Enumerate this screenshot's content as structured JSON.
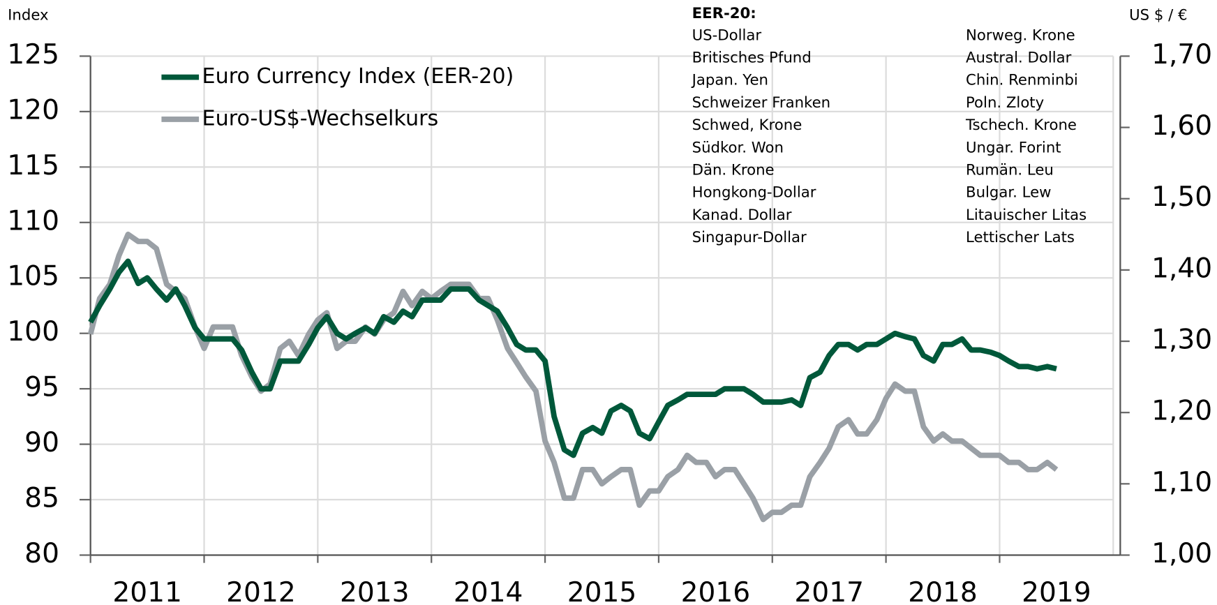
{
  "chart_data": {
    "type": "line",
    "y_axis_label": "Index",
    "y2_axis_label": "US $ / €",
    "currency_list": {
      "title": "EER-20:",
      "left": [
        "US-Dollar",
        "Britisches Pfund",
        "Japan. Yen",
        "Schweizer Franken",
        "Schwed, Krone",
        "Südkor. Won",
        "Dän. Krone",
        "Hongkong-Dollar",
        "Kanad. Dollar",
        "Singapur-Dollar"
      ],
      "right": [
        "Norweg. Krone",
        "Austral. Dollar",
        "Chin. Renminbi",
        "Poln. Zloty",
        "Tschech. Krone",
        "Ungar. Forint",
        "Rumän. Leu",
        "Bulgar. Lew",
        "Litauischer Litas",
        "Lettischer Lats"
      ]
    },
    "x": [
      2011,
      2011.08,
      2011.17,
      2011.25,
      2011.33,
      2011.42,
      2011.5,
      2011.58,
      2011.67,
      2011.75,
      2011.83,
      2011.92,
      2012,
      2012.08,
      2012.17,
      2012.25,
      2012.33,
      2012.42,
      2012.5,
      2012.58,
      2012.67,
      2012.75,
      2012.83,
      2012.92,
      2013,
      2013.08,
      2013.17,
      2013.25,
      2013.33,
      2013.42,
      2013.5,
      2013.58,
      2013.67,
      2013.75,
      2013.83,
      2013.92,
      2014,
      2014.08,
      2014.17,
      2014.25,
      2014.33,
      2014.42,
      2014.5,
      2014.58,
      2014.67,
      2014.75,
      2014.83,
      2014.92,
      2015,
      2015.08,
      2015.17,
      2015.25,
      2015.33,
      2015.42,
      2015.5,
      2015.58,
      2015.67,
      2015.75,
      2015.83,
      2015.92,
      2016,
      2016.08,
      2016.17,
      2016.25,
      2016.33,
      2016.42,
      2016.5,
      2016.58,
      2016.67,
      2016.75,
      2016.83,
      2016.92,
      2017,
      2017.08,
      2017.17,
      2017.25,
      2017.33,
      2017.42,
      2017.5,
      2017.58,
      2017.67,
      2017.75,
      2017.83,
      2017.92,
      2018,
      2018.08,
      2018.17,
      2018.25,
      2018.33,
      2018.42,
      2018.5,
      2018.58,
      2018.67,
      2018.75,
      2018.83,
      2018.92,
      2019,
      2019.08,
      2019.17,
      2019.25,
      2019.33,
      2019.42,
      2019.5
    ],
    "series": [
      {
        "name": "Euro Currency Index (EER-20)",
        "color": "#00583a",
        "axis": "y",
        "values": [
          101,
          102.5,
          104,
          105.5,
          106.5,
          104.5,
          105,
          104,
          103,
          104,
          102.5,
          100.5,
          99.5,
          99.5,
          99.5,
          99.5,
          98.5,
          96.5,
          95,
          95,
          97.5,
          97.5,
          97.5,
          99,
          100.5,
          101.5,
          100,
          99.5,
          100,
          100.5,
          100,
          101.5,
          101,
          102,
          101.5,
          103,
          103,
          103,
          104,
          104,
          104,
          103,
          102.5,
          102,
          100.5,
          99,
          98.5,
          98.5,
          97.5,
          92.5,
          89.5,
          89,
          91,
          91.5,
          91,
          93,
          93.5,
          93,
          91,
          90.5,
          92,
          93.5,
          94,
          94.5,
          94.5,
          94.5,
          94.5,
          95,
          95,
          95,
          94.5,
          93.8,
          93.8,
          93.8,
          94,
          93.5,
          96,
          96.5,
          98,
          99,
          99,
          98.5,
          99,
          99,
          99.5,
          100,
          99.7,
          99.5,
          98,
          97.5,
          99,
          99,
          99.5,
          98.5,
          98.5,
          98.3,
          98,
          97.5,
          97,
          97,
          96.8,
          97,
          96.8
        ]
      },
      {
        "name": "Euro-US$-Wechselkurs",
        "color": "#9aa0a6",
        "axis": "y2",
        "values": [
          1.31,
          1.36,
          1.38,
          1.42,
          1.45,
          1.44,
          1.44,
          1.43,
          1.38,
          1.37,
          1.36,
          1.32,
          1.29,
          1.32,
          1.32,
          1.32,
          1.28,
          1.25,
          1.23,
          1.24,
          1.29,
          1.3,
          1.28,
          1.31,
          1.33,
          1.34,
          1.29,
          1.3,
          1.3,
          1.32,
          1.31,
          1.33,
          1.34,
          1.37,
          1.35,
          1.37,
          1.36,
          1.37,
          1.38,
          1.38,
          1.38,
          1.36,
          1.36,
          1.33,
          1.29,
          1.27,
          1.25,
          1.23,
          1.16,
          1.13,
          1.08,
          1.08,
          1.12,
          1.12,
          1.1,
          1.11,
          1.12,
          1.12,
          1.07,
          1.09,
          1.09,
          1.11,
          1.12,
          1.14,
          1.13,
          1.13,
          1.11,
          1.12,
          1.12,
          1.1,
          1.08,
          1.05,
          1.06,
          1.06,
          1.07,
          1.07,
          1.11,
          1.13,
          1.15,
          1.18,
          1.19,
          1.17,
          1.17,
          1.19,
          1.22,
          1.24,
          1.23,
          1.23,
          1.18,
          1.16,
          1.17,
          1.16,
          1.16,
          1.15,
          1.14,
          1.14,
          1.14,
          1.13,
          1.13,
          1.12,
          1.12,
          1.13,
          1.12
        ]
      }
    ],
    "xlim": [
      2011,
      2020
    ],
    "xticks": [
      2011,
      2012,
      2013,
      2014,
      2015,
      2016,
      2017,
      2018,
      2019
    ],
    "ylim": [
      80,
      125
    ],
    "yticks": [
      80,
      85,
      90,
      95,
      100,
      105,
      110,
      115,
      120,
      125
    ],
    "y2lim": [
      1.0,
      1.7
    ],
    "y2ticks": [
      {
        "value": 1.0,
        "label": "1,00"
      },
      {
        "value": 1.1,
        "label": "1,10"
      },
      {
        "value": 1.2,
        "label": "1,20"
      },
      {
        "value": 1.3,
        "label": "1,30"
      },
      {
        "value": 1.4,
        "label": "1,40"
      },
      {
        "value": 1.5,
        "label": "1,50"
      },
      {
        "value": 1.6,
        "label": "1,60"
      },
      {
        "value": 1.7,
        "label": "1,70"
      }
    ],
    "grid": true,
    "legend": "upper left"
  }
}
